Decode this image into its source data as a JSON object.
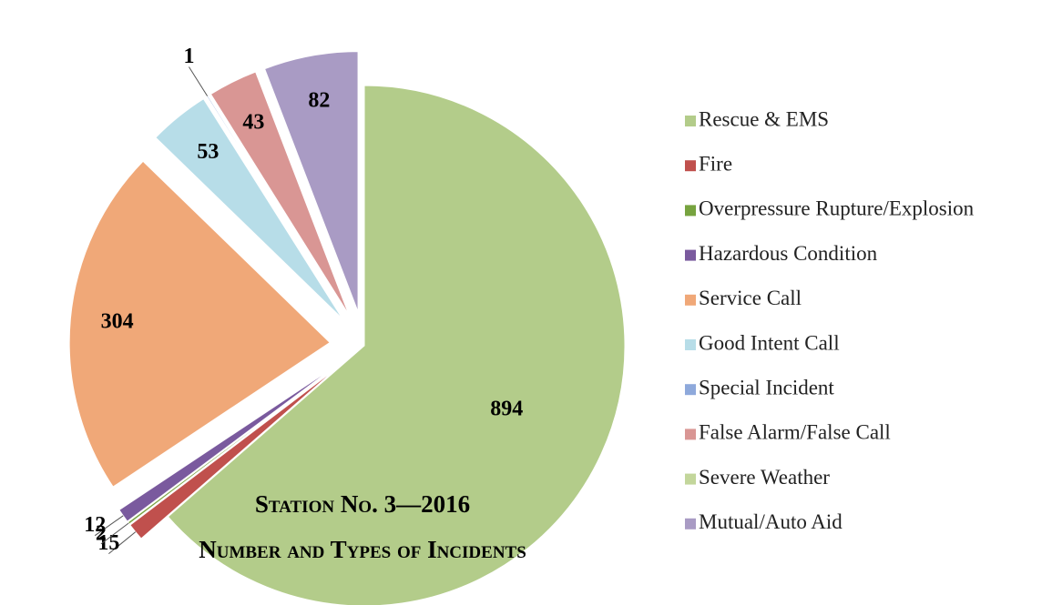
{
  "chart_data": {
    "type": "pie",
    "title": "Station No. 3—2016",
    "subtitle": "Number and Types of Incidents",
    "categories": [
      "Rescue & EMS",
      "Fire",
      "Overpressure Rupture/Explosion",
      "Hazardous Condition",
      "Service Call",
      "Good Intent Call",
      "Special Incident",
      "False Alarm/False Call",
      "Severe Weather",
      "Mutual/Auto Aid"
    ],
    "values": [
      894,
      15,
      2,
      12,
      304,
      53,
      1,
      43,
      0,
      82
    ],
    "colors": [
      "#b3cc8a",
      "#c0504d",
      "#77a33f",
      "#7a5a9e",
      "#f0a878",
      "#b7dde8",
      "#8ea9db",
      "#d99694",
      "#c3d69b",
      "#a99bc4"
    ],
    "legend": "right"
  }
}
